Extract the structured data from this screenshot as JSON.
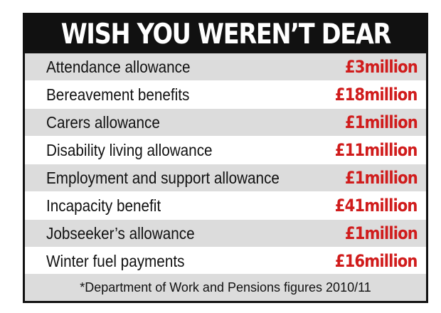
{
  "chart_data": {
    "type": "table",
    "title": "WISH YOU WEREN’T DEAR",
    "rows": [
      {
        "label": "Attendance allowance",
        "value": "£3million"
      },
      {
        "label": "Bereavement benefits",
        "value": "£18million"
      },
      {
        "label": "Carers allowance",
        "value": "£1million"
      },
      {
        "label": "Disability living allowance",
        "value": "£11million"
      },
      {
        "label": "Employment and support allowance",
        "value": "£1million"
      },
      {
        "label": "Incapacity benefit",
        "value": "£41million"
      },
      {
        "label": "Jobseeker’s allowance",
        "value": "£1million"
      },
      {
        "label": "Winter fuel payments",
        "value": "£16million"
      }
    ],
    "footnote": "*Department of Work and Pensions figures 2010/11"
  },
  "colors": {
    "title_background": "#111111",
    "title_text": "#ffffff",
    "row_shade": "#dcdcdc",
    "value_text": "#d01c1c"
  }
}
